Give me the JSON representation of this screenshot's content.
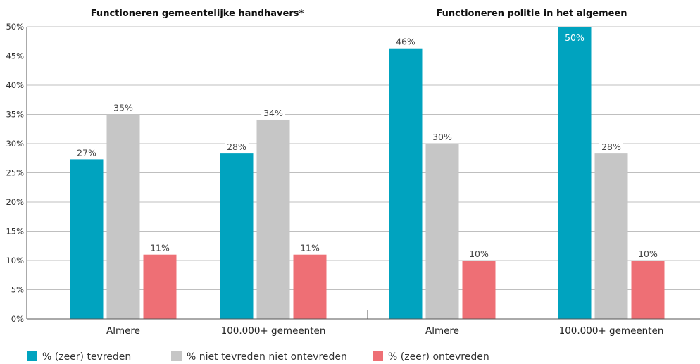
{
  "chart_data": {
    "type": "bar",
    "y_axis": {
      "ylim": [
        0,
        50
      ],
      "ticks": [
        "0%",
        "5%",
        "10%",
        "15%",
        "20%",
        "25%",
        "30%",
        "35%",
        "40%",
        "45%",
        "50%"
      ],
      "grid": true
    },
    "panels": [
      {
        "title": "Functioneren gemeentelijke handhavers*",
        "categories": [
          "Almere",
          "100.000+ gemeenten"
        ],
        "series": [
          {
            "name": "% (zeer) tevreden",
            "values": [
              27.3,
              28.3
            ],
            "labels": [
              "27%",
              "28%"
            ]
          },
          {
            "name": "% niet tevreden niet ontevreden",
            "values": [
              35,
              34.1
            ],
            "labels": [
              "35%",
              "34%"
            ]
          },
          {
            "name": "% (zeer) ontevreden",
            "values": [
              11,
              11
            ],
            "labels": [
              "11%",
              "11%"
            ]
          }
        ]
      },
      {
        "title": "Functioneren politie in het algemeen",
        "categories": [
          "Almere",
          "100.000+ gemeenten"
        ],
        "series": [
          {
            "name": "% (zeer) tevreden",
            "values": [
              46.3,
              50
            ],
            "labels": [
              "46%",
              "50%"
            ]
          },
          {
            "name": "% niet tevreden niet ontevreden",
            "values": [
              30,
              28.3
            ],
            "labels": [
              "30%",
              "28%"
            ]
          },
          {
            "name": "% (zeer) ontevreden",
            "values": [
              10,
              10
            ],
            "labels": [
              "10%",
              "10%"
            ]
          }
        ]
      }
    ],
    "legend": {
      "placement": "bottom-left",
      "entries": [
        "% (zeer) tevreden",
        "% niet tevreden niet ontevreden",
        "% (zeer) ontevreden"
      ]
    },
    "colors": [
      "#00a3bf",
      "#c6c6c6",
      "#ee6f75"
    ]
  }
}
